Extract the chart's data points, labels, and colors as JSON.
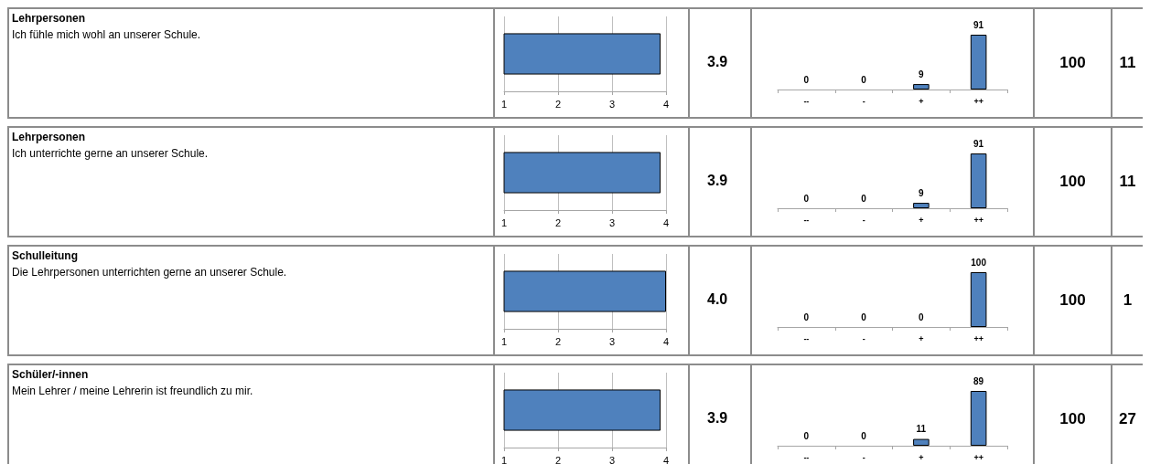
{
  "chart_data": [
    {
      "type": "other",
      "title": "Lehrpersonen",
      "subtitle": "Ich fühle mich wohl an unserer Schule."
    },
    {
      "type": "bar",
      "orientation": "horizontal",
      "categories": [
        null
      ],
      "values": [
        3.9
      ],
      "annotations": [
        "3.9"
      ],
      "color": "#4f81bd",
      "xlim": [
        1,
        4
      ],
      "xticks": [
        1,
        2,
        3,
        4
      ],
      "grid": "x"
    },
    {
      "type": "bar",
      "categories": [
        "--",
        "-",
        "+",
        "++"
      ],
      "values": [
        0,
        0,
        9,
        91
      ],
      "color": "#4f81bd",
      "data_labels": true,
      "annotations": [
        "100",
        "11"
      ]
    },
    {
      "type": "other",
      "title": "Lehrpersonen",
      "subtitle": "Ich unterrichte gerne an unserer Schule."
    },
    {
      "type": "bar",
      "orientation": "horizontal",
      "categories": [
        null
      ],
      "values": [
        3.9
      ],
      "annotations": [
        "3.9"
      ],
      "color": "#4f81bd",
      "xlim": [
        1,
        4
      ],
      "xticks": [
        1,
        2,
        3,
        4
      ],
      "grid": "x"
    },
    {
      "type": "bar",
      "categories": [
        "--",
        "-",
        "+",
        "++"
      ],
      "values": [
        0,
        0,
        9,
        91
      ],
      "color": "#4f81bd",
      "data_labels": true,
      "annotations": [
        "100",
        "11"
      ]
    },
    {
      "type": "other",
      "title": "Schulleitung",
      "subtitle": "Die Lehrpersonen unterrichten gerne an unserer Schule."
    },
    {
      "type": "bar",
      "orientation": "horizontal",
      "categories": [
        null
      ],
      "values": [
        4.0
      ],
      "annotations": [
        "4.0"
      ],
      "color": "#4f81bd",
      "xlim": [
        1,
        4
      ],
      "xticks": [
        1,
        2,
        3,
        4
      ],
      "grid": "x"
    },
    {
      "type": "bar",
      "categories": [
        "--",
        "-",
        "+",
        "++"
      ],
      "values": [
        0,
        0,
        0,
        100
      ],
      "color": "#4f81bd",
      "data_labels": true,
      "annotations": [
        "100",
        "1"
      ]
    },
    {
      "type": "other",
      "title": "Schüler/-innen",
      "subtitle": "Mein Lehrer / meine Lehrerin ist freundlich zu mir."
    },
    {
      "type": "bar",
      "orientation": "horizontal",
      "categories": [
        null
      ],
      "values": [
        3.9
      ],
      "annotations": [
        "3.9"
      ],
      "color": "#4f81bd",
      "xlim": [
        1,
        4
      ],
      "xticks": [
        1,
        2,
        3,
        4
      ],
      "grid": "x"
    },
    {
      "type": "bar",
      "categories": [
        "--",
        "-",
        "+",
        "++"
      ],
      "values": [
        0,
        0,
        11,
        89
      ],
      "color": "#4f81bd",
      "data_labels": true,
      "annotations": [
        "100",
        "27"
      ]
    }
  ]
}
